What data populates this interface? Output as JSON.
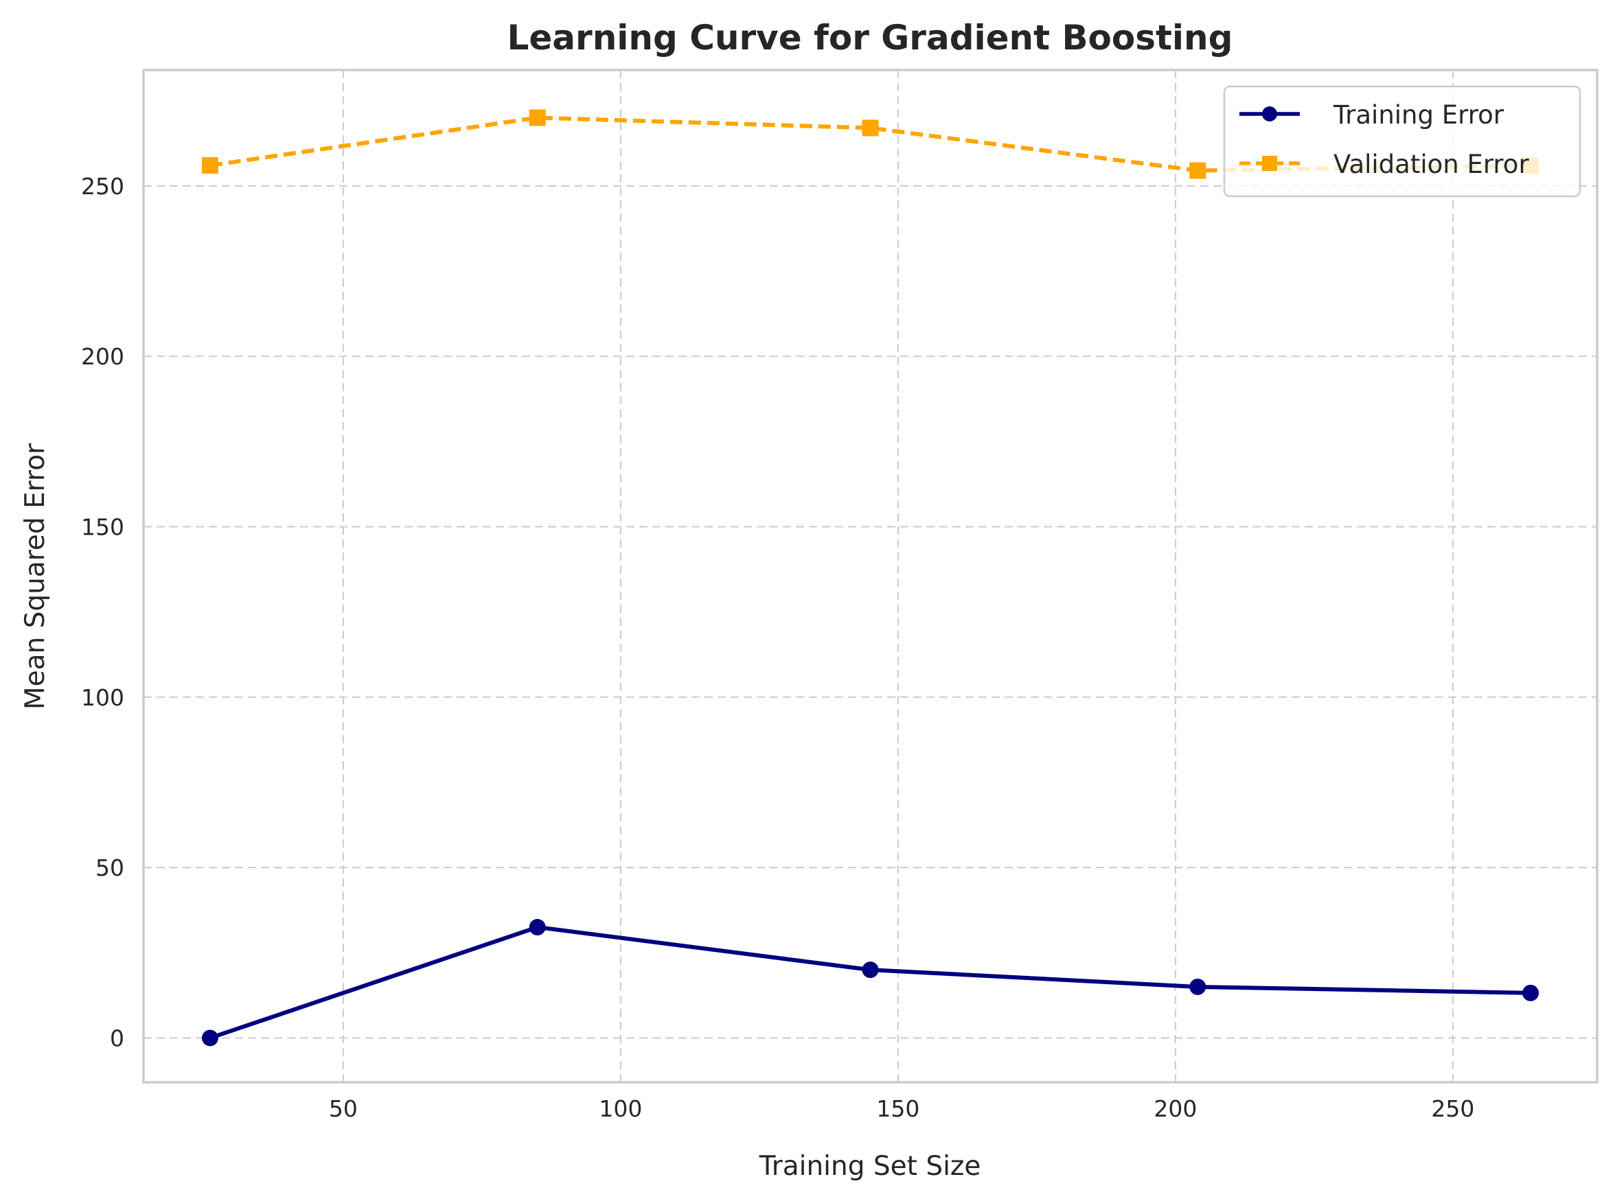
{
  "chart_data": {
    "type": "line",
    "title": "Learning Curve for Gradient Boosting",
    "xlabel": "Training Set Size",
    "ylabel": "Mean Squared Error",
    "xlim": [
      14,
      276
    ],
    "ylim": [
      -13,
      284
    ],
    "xticks": [
      50,
      100,
      150,
      200,
      250
    ],
    "yticks": [
      0,
      50,
      100,
      150,
      200,
      250
    ],
    "grid": true,
    "legend_position": "top-right",
    "series": [
      {
        "name": "Training Error",
        "color": "#000080",
        "line_style": "solid",
        "marker": "circle",
        "x": [
          26,
          85,
          145,
          204,
          264
        ],
        "y": [
          0,
          32.5,
          20,
          15,
          13.2
        ]
      },
      {
        "name": "Validation Error",
        "color": "#FFA500",
        "line_style": "dashed",
        "marker": "square",
        "x": [
          26,
          85,
          145,
          204,
          264
        ],
        "y": [
          256,
          270,
          267,
          254.5,
          256
        ]
      }
    ]
  }
}
